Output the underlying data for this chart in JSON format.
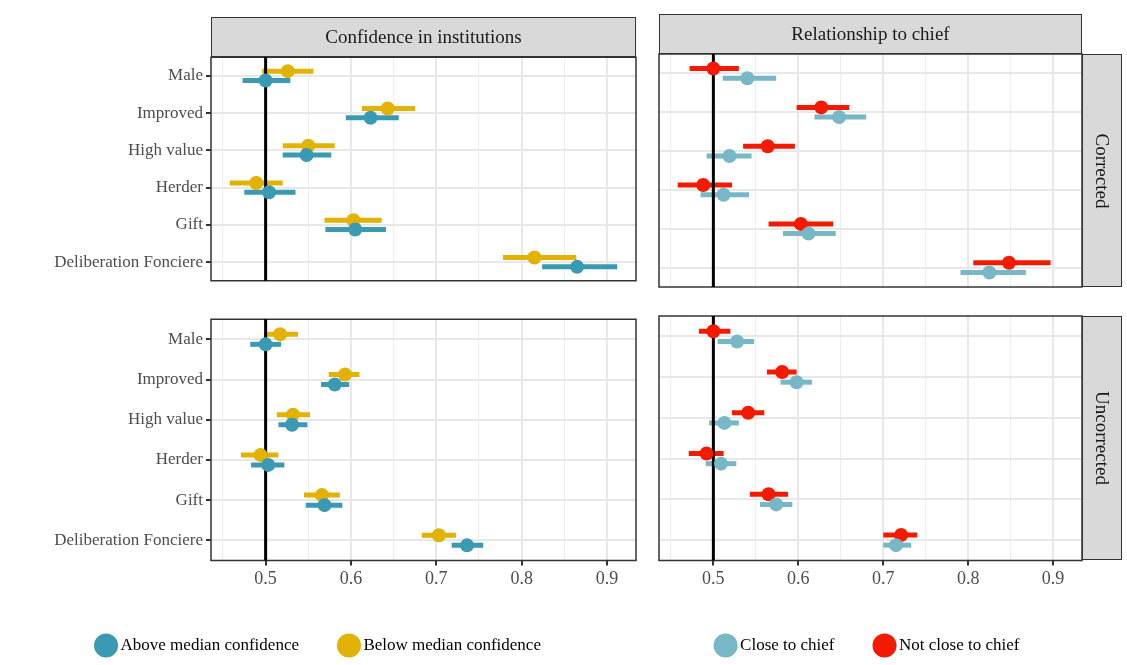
{
  "chart_data": [
    {
      "type": "scatter",
      "orientation": "horizontal",
      "title": "Confidence in institutions",
      "categories": [
        "Male",
        "Improved",
        "High value",
        "Herder",
        "Gift",
        "Deliberation Fonciere"
      ],
      "series": [
        {
          "color": "#3a9ab2",
          "values": [
            0.5,
            0.623,
            0.548,
            0.504,
            0.605,
            0.865
          ],
          "errors": [
            [
              0.473,
              0.529
            ],
            [
              0.594,
              0.656
            ],
            [
              0.52,
              0.577
            ],
            [
              0.475,
              0.535
            ],
            [
              0.57,
              0.641
            ],
            [
              0.824,
              0.912
            ]
          ]
        },
        {
          "color": "#e2b205",
          "values": [
            0.526,
            0.643,
            0.55,
            0.489,
            0.603,
            0.815
          ],
          "errors": [
            [
              0.496,
              0.556
            ],
            [
              0.613,
              0.675
            ],
            [
              0.52,
              0.581
            ],
            [
              0.458,
              0.52
            ],
            [
              0.569,
              0.636
            ],
            [
              0.778,
              0.864
            ]
          ]
        }
      ],
      "xlim": [
        0.436,
        0.934
      ],
      "xticks": [
        {
          "value": 0.45,
          "label": null
        },
        0.5,
        {
          "value": 0.55,
          "label": null
        },
        0.6,
        {
          "value": 0.65,
          "label": null
        },
        0.7,
        {
          "value": 0.75,
          "label": null
        },
        0.8,
        {
          "value": 0.85,
          "label": null
        },
        0.9
      ],
      "ref_lines": [
        {
          "axis": "x",
          "value": 0.5,
          "color": "#000000"
        }
      ],
      "grid": true,
      "marker": "circle",
      "tick_labels": "y"
    },
    {
      "type": "scatter",
      "orientation": "horizontal",
      "title": "Relationship to chief",
      "y2label": "Corrected",
      "categories": [
        null,
        null,
        null,
        null,
        null,
        null
      ],
      "series": [
        {
          "color": "#78b7c5",
          "values": [
            0.54,
            0.648,
            0.519,
            0.512,
            0.612,
            0.825
          ],
          "errors": [
            [
              0.511,
              0.574
            ],
            [
              0.619,
              0.68
            ],
            [
              0.492,
              0.545
            ],
            [
              0.485,
              0.542
            ],
            [
              0.582,
              0.644
            ],
            [
              0.791,
              0.868
            ]
          ]
        },
        {
          "color": "#f21a00",
          "values": [
            0.5,
            0.627,
            0.564,
            0.488,
            0.603,
            0.848
          ],
          "errors": [
            [
              0.472,
              0.53
            ],
            [
              0.598,
              0.66
            ],
            [
              0.535,
              0.596
            ],
            [
              0.458,
              0.522
            ],
            [
              0.565,
              0.641
            ],
            [
              0.806,
              0.897
            ]
          ]
        }
      ],
      "xlim": [
        0.436,
        0.934
      ],
      "xticks": [
        {
          "value": 0.45,
          "label": null
        },
        0.5,
        {
          "value": 0.55,
          "label": null
        },
        0.6,
        {
          "value": 0.65,
          "label": null
        },
        0.7,
        {
          "value": 0.75,
          "label": null
        },
        0.8,
        {
          "value": 0.85,
          "label": null
        },
        0.9
      ],
      "ref_lines": [
        {
          "axis": "x",
          "value": 0.5,
          "color": "#000000"
        }
      ],
      "grid": true,
      "marker": "circle",
      "tick_labels": false
    },
    {
      "type": "scatter",
      "orientation": "horizontal",
      "categories": [
        "Male",
        "Improved",
        "High value",
        "Herder",
        "Gift",
        "Deliberation Fonciere"
      ],
      "series": [
        {
          "name": "Above median confidence",
          "color": "#3a9ab2",
          "values": [
            0.5,
            0.581,
            0.531,
            0.503,
            0.569,
            0.736
          ],
          "errors": [
            [
              0.482,
              0.518
            ],
            [
              0.565,
              0.598
            ],
            [
              0.515,
              0.549
            ],
            [
              0.483,
              0.522
            ],
            [
              0.547,
              0.59
            ],
            [
              0.718,
              0.755
            ]
          ]
        },
        {
          "name": "Below median confidence",
          "color": "#e2b205",
          "values": [
            0.517,
            0.593,
            0.532,
            0.494,
            0.566,
            0.703
          ],
          "errors": [
            [
              0.498,
              0.538
            ],
            [
              0.574,
              0.61
            ],
            [
              0.513,
              0.552
            ],
            [
              0.471,
              0.515
            ],
            [
              0.545,
              0.587
            ],
            [
              0.683,
              0.723
            ]
          ]
        }
      ],
      "xlim": [
        0.436,
        0.934
      ],
      "xticks": [
        {
          "value": 0.45,
          "label": null
        },
        0.5,
        {
          "value": 0.55,
          "label": null
        },
        0.6,
        {
          "value": 0.65,
          "label": null
        },
        0.7,
        {
          "value": 0.75,
          "label": null
        },
        0.8,
        {
          "value": 0.85,
          "label": null
        },
        0.9
      ],
      "ref_lines": [
        {
          "axis": "x",
          "value": 0.5,
          "color": "#000000"
        }
      ],
      "grid": true,
      "marker": "circle",
      "legend": "bottom"
    },
    {
      "type": "scatter",
      "orientation": "horizontal",
      "y2label": "Uncorrected",
      "categories": [
        null,
        null,
        null,
        null,
        null,
        null
      ],
      "series": [
        {
          "name": "Close to chief",
          "color": "#78b7c5",
          "values": [
            0.528,
            0.598,
            0.513,
            0.509,
            0.574,
            0.715
          ],
          "errors": [
            [
              0.505,
              0.548
            ],
            [
              0.579,
              0.616
            ],
            [
              0.495,
              0.53
            ],
            [
              0.491,
              0.527
            ],
            [
              0.555,
              0.593
            ],
            [
              0.7,
              0.733
            ]
          ]
        },
        {
          "name": "Not close to chief",
          "color": "#f21a00",
          "values": [
            0.5,
            0.581,
            0.541,
            0.492,
            0.565,
            0.721
          ],
          "errors": [
            [
              0.483,
              0.52
            ],
            [
              0.563,
              0.598
            ],
            [
              0.522,
              0.56
            ],
            [
              0.471,
              0.512
            ],
            [
              0.543,
              0.588
            ],
            [
              0.7,
              0.74
            ]
          ]
        }
      ],
      "xlim": [
        0.436,
        0.934
      ],
      "xticks": [
        {
          "value": 0.45,
          "label": null
        },
        0.5,
        {
          "value": 0.55,
          "label": null
        },
        0.6,
        {
          "value": 0.65,
          "label": null
        },
        0.7,
        {
          "value": 0.75,
          "label": null
        },
        0.8,
        {
          "value": 0.85,
          "label": null
        },
        0.9
      ],
      "ref_lines": [
        {
          "axis": "x",
          "value": 0.5,
          "color": "#000000"
        }
      ],
      "grid": true,
      "marker": "circle",
      "tick_labels": "x",
      "legend": "bottom"
    }
  ]
}
